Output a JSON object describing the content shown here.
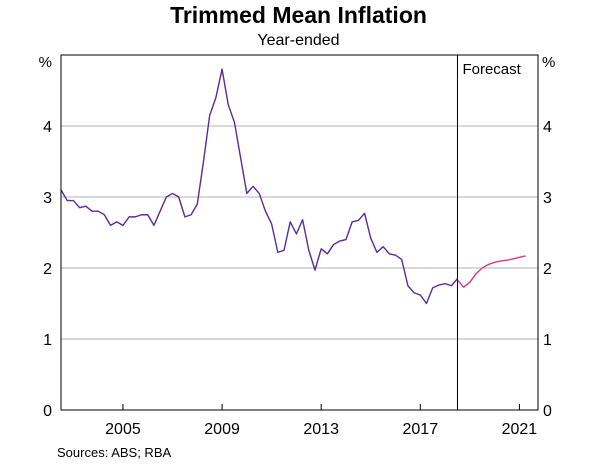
{
  "chart_data": {
    "type": "line",
    "title": "Trimmed Mean Inflation",
    "subtitle": "Year-ended",
    "ylabel_left": "%",
    "ylabel_right": "%",
    "ylim": [
      0,
      5
    ],
    "yticks": [
      0,
      1,
      2,
      3,
      4
    ],
    "xlim": [
      2002.5,
      2021.75
    ],
    "xticks": [
      2005,
      2009,
      2013,
      2017,
      2021
    ],
    "grid": true,
    "forecast_start": 2018.5,
    "forecast_label": "Forecast",
    "source": "Sources:   ABS; RBA",
    "colors": {
      "actual": "#5b2a9e",
      "forecast": "#e0377d",
      "grid": "#b3b3b3"
    },
    "series": [
      {
        "role": "actual",
        "x": [
          2002.5,
          2002.75,
          2003.0,
          2003.25,
          2003.5,
          2003.75,
          2004.0,
          2004.25,
          2004.5,
          2004.75,
          2005.0,
          2005.25,
          2005.5,
          2005.75,
          2006.0,
          2006.25,
          2006.5,
          2006.75,
          2007.0,
          2007.25,
          2007.5,
          2007.75,
          2008.0,
          2008.25,
          2008.5,
          2008.75,
          2009.0,
          2009.25,
          2009.5,
          2009.75,
          2010.0,
          2010.25,
          2010.5,
          2010.75,
          2011.0,
          2011.25,
          2011.5,
          2011.75,
          2012.0,
          2012.25,
          2012.5,
          2012.75,
          2013.0,
          2013.25,
          2013.5,
          2013.75,
          2014.0,
          2014.25,
          2014.5,
          2014.75,
          2015.0,
          2015.25,
          2015.5,
          2015.75,
          2016.0,
          2016.25,
          2016.5,
          2016.75,
          2017.0,
          2017.25,
          2017.5,
          2017.75,
          2018.0,
          2018.25,
          2018.5
        ],
        "y": [
          3.1,
          2.95,
          2.95,
          2.85,
          2.87,
          2.8,
          2.8,
          2.75,
          2.6,
          2.65,
          2.6,
          2.72,
          2.72,
          2.75,
          2.75,
          2.6,
          2.8,
          3.0,
          3.05,
          3.0,
          2.72,
          2.75,
          2.9,
          3.5,
          4.15,
          4.4,
          4.8,
          4.3,
          4.05,
          3.55,
          3.05,
          3.15,
          3.05,
          2.8,
          2.62,
          2.22,
          2.25,
          2.65,
          2.48,
          2.68,
          2.25,
          1.97,
          2.27,
          2.2,
          2.33,
          2.38,
          2.4,
          2.65,
          2.67,
          2.77,
          2.42,
          2.22,
          2.3,
          2.2,
          2.18,
          2.12,
          1.75,
          1.65,
          1.62,
          1.5,
          1.72,
          1.76,
          1.78,
          1.75,
          1.85
        ]
      },
      {
        "role": "forecast",
        "x": [
          2018.5,
          2018.75,
          2019.0,
          2019.25,
          2019.5,
          2019.75,
          2020.0,
          2020.25,
          2020.5,
          2020.75,
          2021.0,
          2021.25
        ],
        "y": [
          1.83,
          1.73,
          1.8,
          1.92,
          2.0,
          2.05,
          2.08,
          2.1,
          2.11,
          2.13,
          2.15,
          2.17
        ]
      }
    ]
  }
}
